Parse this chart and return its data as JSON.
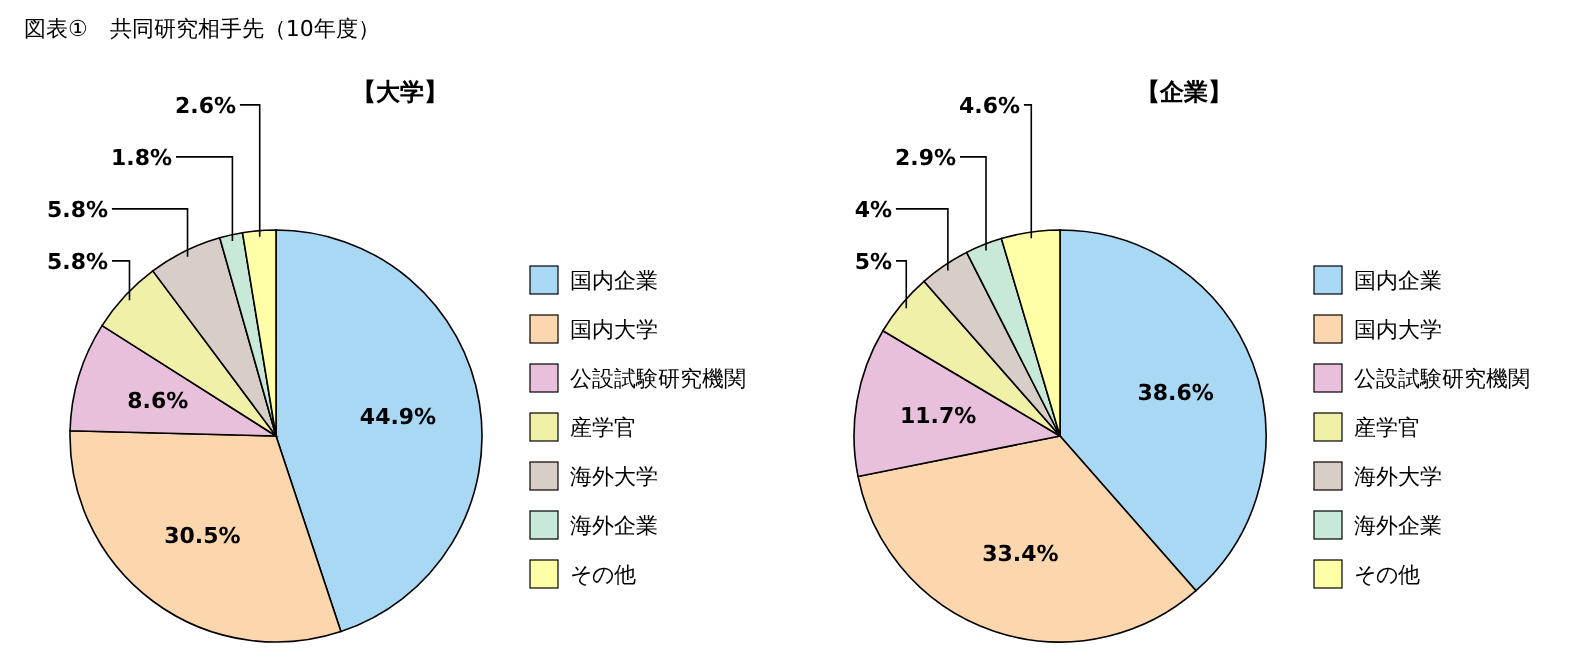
{
  "chart_data": [
    {
      "type": "pie",
      "title": "【大学】",
      "legend": "right",
      "annotations": [
        "図表①　共同研究相手先（10年度）"
      ],
      "categories": [
        "国内企業",
        "国内大学",
        "公設試験研究機関",
        "産学官",
        "海外大学",
        "海外企業",
        "その他"
      ],
      "values": [
        44.9,
        30.5,
        8.6,
        5.8,
        5.8,
        1.8,
        2.6
      ],
      "value_labels": [
        "44.9%",
        "30.5%",
        "8.6%",
        "5.8%",
        "5.8%",
        "1.8%",
        "2.6%"
      ],
      "colors": [
        "#a8d8f4",
        "#fcd6ac",
        "#e8c0dc",
        "#f0f0a8",
        "#d8cec8",
        "#c8e8d8",
        "#ffffa8"
      ]
    },
    {
      "type": "pie",
      "title": "【企業】",
      "legend": "right",
      "categories": [
        "国内企業",
        "国内大学",
        "公設試験研究機関",
        "産学官",
        "海外大学",
        "海外企業",
        "その他"
      ],
      "values": [
        38.6,
        33.4,
        11.7,
        5,
        4,
        2.9,
        4.6
      ],
      "value_labels": [
        "38.6%",
        "33.4%",
        "11.7%",
        "5%",
        "4%",
        "2.9%",
        "4.6%"
      ],
      "colors": [
        "#a8d8f4",
        "#fcd6ac",
        "#e8c0dc",
        "#f0f0a8",
        "#d8cec8",
        "#c8e8d8",
        "#ffffa8"
      ]
    }
  ]
}
